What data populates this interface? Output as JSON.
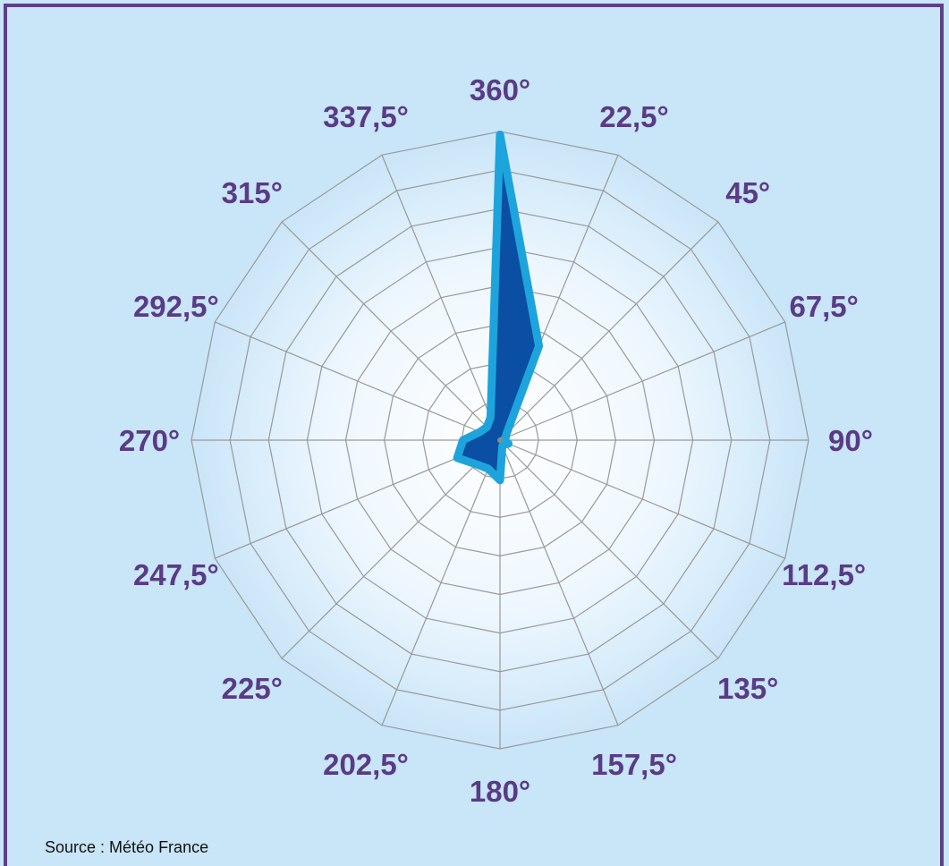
{
  "chart_data": {
    "type": "radar",
    "categories": [
      "360°",
      "22,5°",
      "45°",
      "67,5°",
      "90°",
      "112,5°",
      "135°",
      "157,5°",
      "180°",
      "202,5°",
      "225°",
      "247,5°",
      "270°",
      "292,5°",
      "315°",
      "337,5°"
    ],
    "series": [
      {
        "values": [
          0.99,
          0.33,
          0.03,
          0.02,
          0.01,
          0.03,
          0.02,
          0.02,
          0.13,
          0.1,
          0.11,
          0.15,
          0.12,
          0.07,
          0.06,
          0.08
        ]
      }
    ],
    "rlim": [
      0,
      1
    ],
    "grid_rings": 8,
    "grid": true,
    "colors": {
      "fill": "#0a4fa3",
      "outline": "#1da4dc",
      "grid": "#999999",
      "tick_text": "#5a3b86",
      "background": "#c9e5f8"
    }
  },
  "source": "Source : Météo France"
}
